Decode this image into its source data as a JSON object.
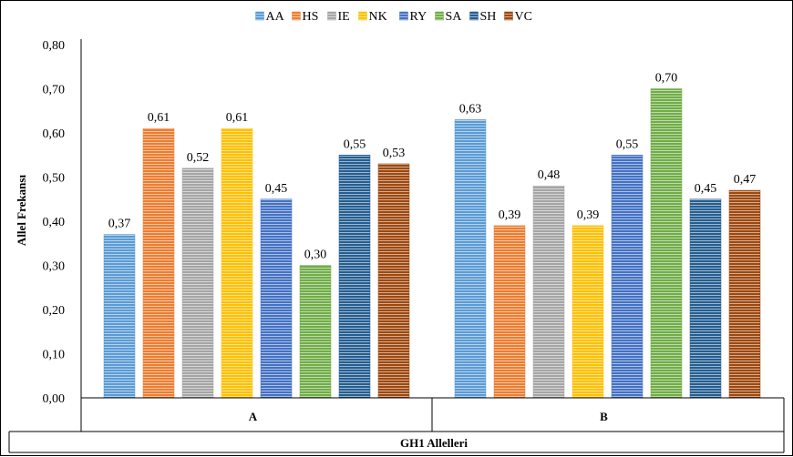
{
  "chart_data": {
    "type": "bar",
    "categories": [
      "A",
      "B"
    ],
    "series": [
      {
        "name": "AA",
        "values": [
          0.37,
          0.63
        ],
        "labels": [
          "0,37",
          "0,63"
        ],
        "color": "#5b9bd5"
      },
      {
        "name": "HS",
        "values": [
          0.61,
          0.39
        ],
        "labels": [
          "0,61",
          "0,39"
        ],
        "color": "#ed7d31"
      },
      {
        "name": "IE",
        "values": [
          0.52,
          0.48
        ],
        "labels": [
          "0,52",
          "0,48"
        ],
        "color": "#a5a5a5"
      },
      {
        "name": "NK",
        "values": [
          0.61,
          0.39
        ],
        "labels": [
          "0,61",
          "0,39"
        ],
        "color": "#ffc000"
      },
      {
        "name": "RY",
        "values": [
          0.45,
          0.55
        ],
        "labels": [
          "0,45",
          "0,55"
        ],
        "color": "#4472c4"
      },
      {
        "name": "SA",
        "values": [
          0.3,
          0.7
        ],
        "labels": [
          "0,30",
          "0,70"
        ],
        "color": "#70ad47"
      },
      {
        "name": "SH",
        "values": [
          0.55,
          0.45
        ],
        "labels": [
          "0,55",
          "0,45"
        ],
        "color": "#255e91"
      },
      {
        "name": "VC",
        "values": [
          0.53,
          0.47
        ],
        "labels": [
          "0,53",
          "0,47"
        ],
        "color": "#9e480e"
      }
    ],
    "yticks": [
      "0,00",
      "0,10",
      "0,20",
      "0,30",
      "0,40",
      "0,50",
      "0,60",
      "0,70",
      "0,80"
    ],
    "ylim": [
      0,
      0.8
    ],
    "ylabel": "Allel Frekansı",
    "xlabel": "GH1 Allelleri",
    "legend_position": "top",
    "pattern": "horizontal-stripes",
    "grid": false
  }
}
